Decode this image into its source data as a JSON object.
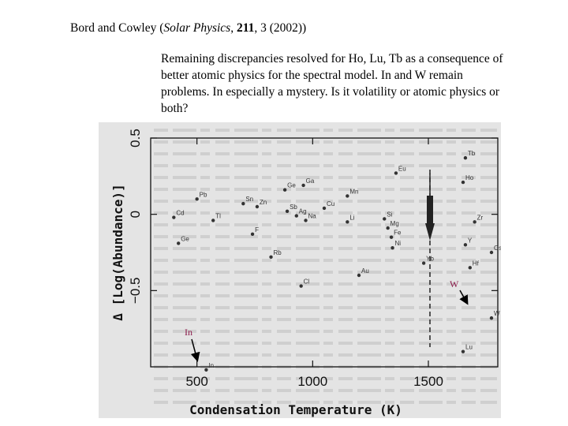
{
  "header": {
    "authors": "Bord and Cowley (",
    "journal": "Solar Physics",
    "sep": ", ",
    "volume": "211",
    "rest": ", 3 (2002))"
  },
  "caption": "Remaining discrepancies resolved for Ho, Lu, Tb as a consequence of better atomic physics for the spectral model. In and W remain problems. In especially a mystery. Is it volatility or atomic physics or both?",
  "annotations": {
    "w_label": "W",
    "in_label": "In"
  },
  "colors": {
    "annotation": "#8b1a4a",
    "scan_bg": "#e4e4e4",
    "ink": "#111111"
  },
  "chart_data": {
    "type": "scatter",
    "xlabel": "Condensation Temperature (K)",
    "ylabel": "Δ [Log(Abundance)]",
    "xlim": [
      300,
      1800
    ],
    "ylim": [
      -1.0,
      0.5
    ],
    "x_ticks": [
      500,
      1000,
      1500
    ],
    "y_ticks": [
      0.5,
      0,
      -0.5
    ],
    "x_tick_labels": [
      "500",
      "1000",
      "1500"
    ],
    "y_tick_labels": [
      "0.5",
      "0",
      "−0.5"
    ],
    "points": [
      {
        "label": "Tb",
        "x": 1660,
        "y": 0.37
      },
      {
        "label": "Eu",
        "x": 1360,
        "y": 0.27
      },
      {
        "label": "Ga",
        "x": 960,
        "y": 0.19
      },
      {
        "label": "Ge",
        "x": 880,
        "y": 0.16
      },
      {
        "label": "Ho",
        "x": 1650,
        "y": 0.21
      },
      {
        "label": "Pb",
        "x": 500,
        "y": 0.1
      },
      {
        "label": "Mn",
        "x": 1150,
        "y": 0.12
      },
      {
        "label": "Sn",
        "x": 700,
        "y": 0.07
      },
      {
        "label": "Zn",
        "x": 760,
        "y": 0.05
      },
      {
        "label": "Cu",
        "x": 1050,
        "y": 0.04
      },
      {
        "label": "Sb",
        "x": 890,
        "y": 0.02
      },
      {
        "label": "Ag",
        "x": 930,
        "y": -0.01
      },
      {
        "label": "Na",
        "x": 970,
        "y": -0.04
      },
      {
        "label": "Tl",
        "x": 570,
        "y": -0.04
      },
      {
        "label": "Cd",
        "x": 400,
        "y": -0.02
      },
      {
        "label": "Li",
        "x": 1150,
        "y": -0.05
      },
      {
        "label": "Si",
        "x": 1310,
        "y": -0.03
      },
      {
        "label": "Mg",
        "x": 1325,
        "y": -0.09
      },
      {
        "label": "Fe",
        "x": 1340,
        "y": -0.15
      },
      {
        "label": "Zr",
        "x": 1700,
        "y": -0.05
      },
      {
        "label": "F",
        "x": 740,
        "y": -0.13
      },
      {
        "label": "Ni",
        "x": 1345,
        "y": -0.22
      },
      {
        "label": "Y",
        "x": 1660,
        "y": -0.2
      },
      {
        "label": "Os",
        "x": 1810,
        "y": -0.25
      },
      {
        "label": "Yb",
        "x": 1480,
        "y": -0.32
      },
      {
        "label": "Hf",
        "x": 1680,
        "y": -0.35
      },
      {
        "label": "Ge",
        "x": 420,
        "y": -0.19
      },
      {
        "label": "Au",
        "x": 1200,
        "y": -0.4
      },
      {
        "label": "Cl",
        "x": 950,
        "y": -0.47
      },
      {
        "label": "Rb",
        "x": 820,
        "y": -0.28
      },
      {
        "label": "W",
        "x": 1790,
        "y": -0.68
      },
      {
        "label": "In",
        "x": 540,
        "y": -1.02
      },
      {
        "label": "Lu",
        "x": 1650,
        "y": -0.9
      }
    ]
  }
}
